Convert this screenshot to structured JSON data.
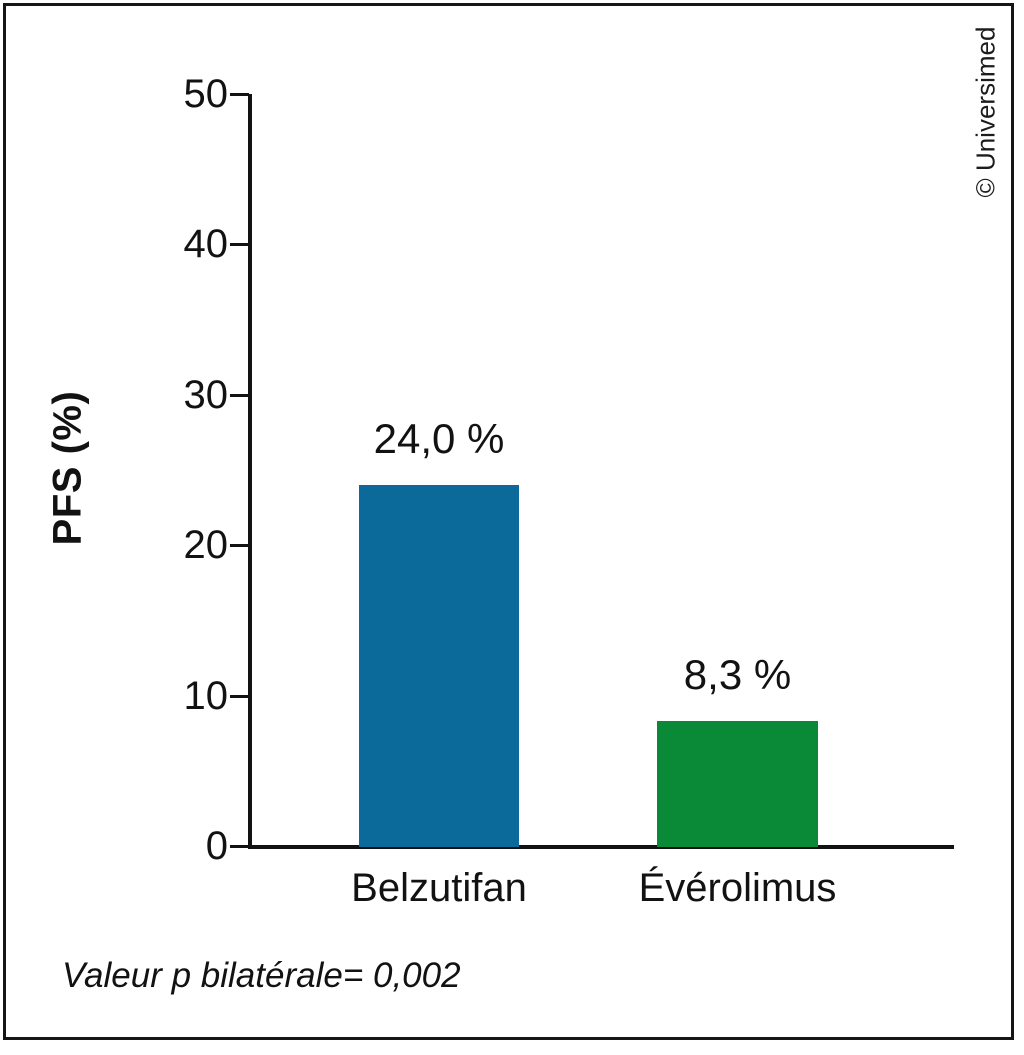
{
  "chart_data": {
    "type": "bar",
    "title": "",
    "categories": [
      "Belzutifan",
      "Évérolimus"
    ],
    "values": [
      24.0,
      8.3
    ],
    "value_labels": [
      "24,0 %",
      "8,3 %"
    ],
    "bar_colors": [
      "#0b6a9a",
      "#0a8937"
    ],
    "ylabel": "PFS (%)",
    "xlabel": "",
    "ylim": [
      0,
      50
    ],
    "yticks": [
      0,
      10,
      20,
      30,
      40,
      50
    ],
    "grid": false,
    "legend": "none",
    "footnote": "Valeur p bilatérale= 0,002",
    "watermark": "© Universimed"
  }
}
